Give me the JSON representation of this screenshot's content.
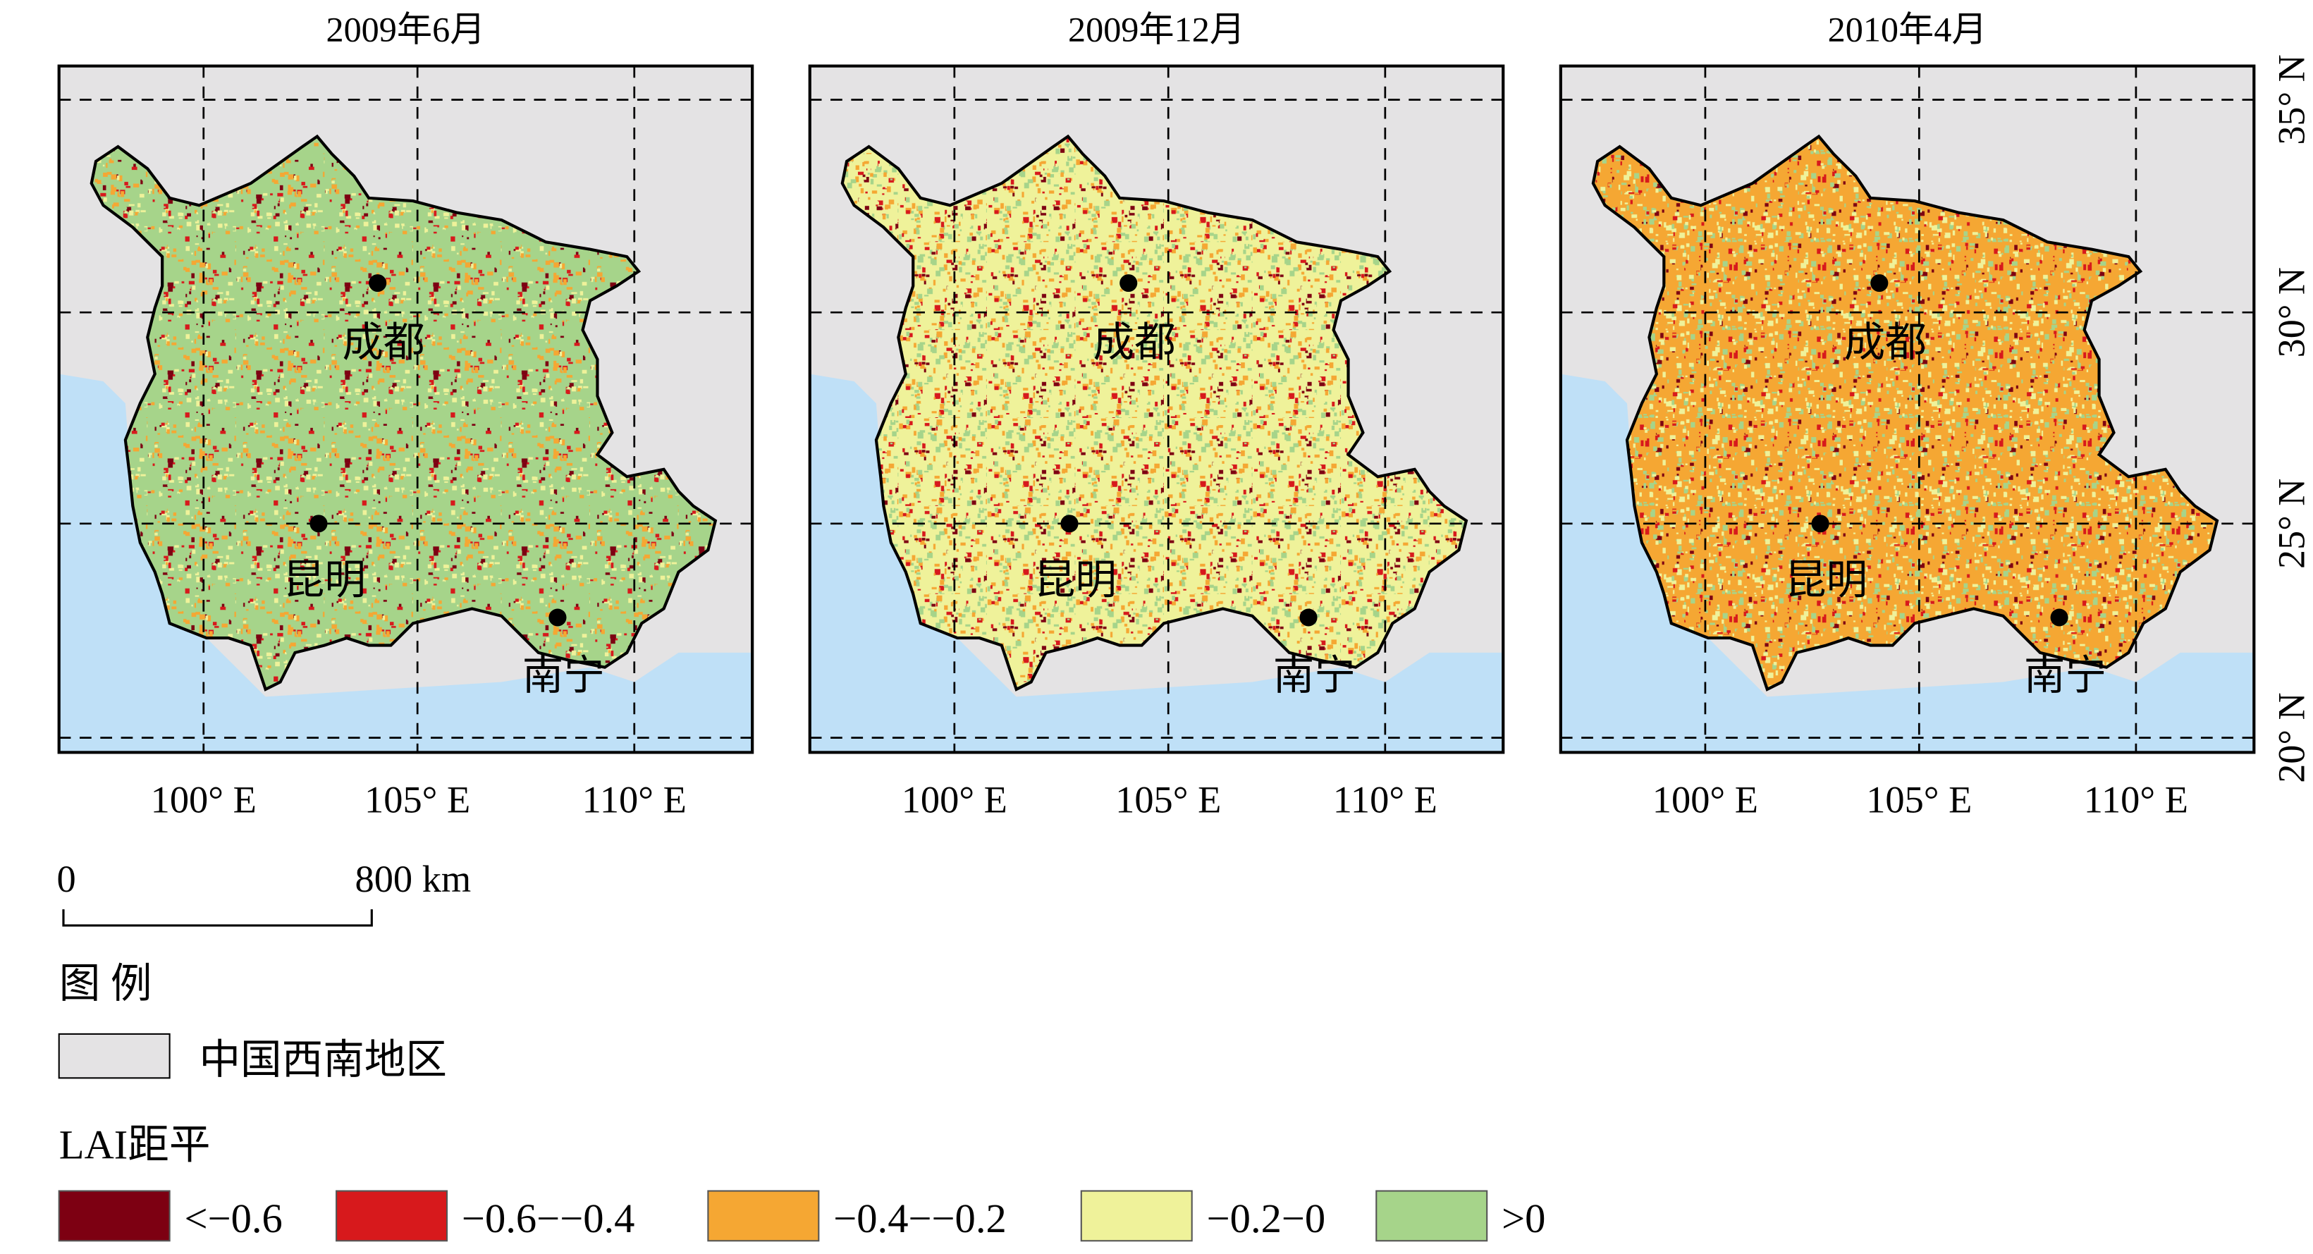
{
  "panels": [
    {
      "title": "2009年6月"
    },
    {
      "title": "2009年12月"
    },
    {
      "title": "2010年4月"
    }
  ],
  "lon_labels": [
    "100° E",
    "105° E",
    "110° E"
  ],
  "lat_labels": [
    "35° N",
    "30° N",
    "25° N",
    "20° N"
  ],
  "cities": [
    "成都",
    "昆明",
    "南宁"
  ],
  "scale_bar": {
    "start": "0",
    "end": "800 km"
  },
  "legend": {
    "title": "图 例",
    "region": "中国西南地区",
    "lai_title": "LAI距平",
    "classes": [
      {
        "label": "<−0.6",
        "color": "#7d0012"
      },
      {
        "label": "−0.6−−0.4",
        "color": "#d7191c"
      },
      {
        "label": "−0.4−−0.2",
        "color": "#f5a733"
      },
      {
        "label": "−0.2−0",
        "color": "#eff29a"
      },
      {
        "label": ">0",
        "color": "#a6d48a"
      }
    ]
  }
}
